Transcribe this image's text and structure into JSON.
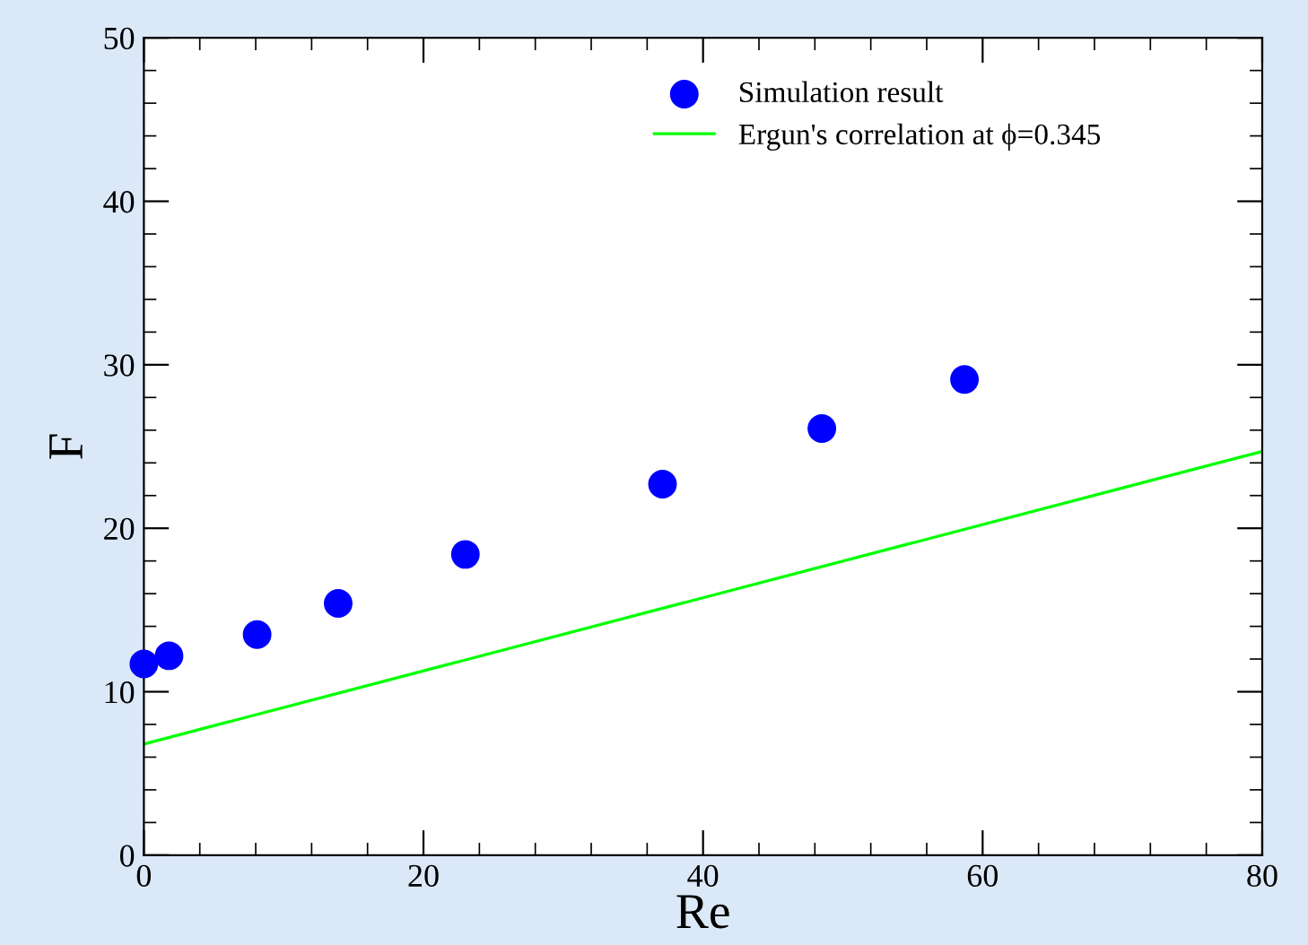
{
  "chart_data": {
    "type": "scatter",
    "xlabel": "Re",
    "ylabel": "F",
    "xlim": [
      0,
      80
    ],
    "xticks": [
      0,
      20,
      40,
      60,
      80
    ],
    "ylim": [
      0,
      50
    ],
    "yticks": [
      0,
      10,
      20,
      30,
      40,
      50
    ],
    "grid": false,
    "legend": "top right",
    "series": [
      {
        "name": "Simulation result",
        "color": "#0000ff",
        "marker": "circle",
        "x": [
          0.0,
          1.8,
          8.1,
          13.9,
          23.0,
          37.1,
          48.5,
          58.7
        ],
        "values": [
          11.7,
          12.2,
          13.5,
          15.4,
          18.4,
          22.7,
          26.1,
          29.1
        ]
      },
      {
        "name": "Ergun's correlation at ϕ=0.345",
        "type": "line",
        "color": "#00ff00",
        "marker": "none",
        "line_style": "solid",
        "x": [
          0,
          80
        ],
        "values": [
          6.8,
          24.7
        ]
      }
    ]
  }
}
